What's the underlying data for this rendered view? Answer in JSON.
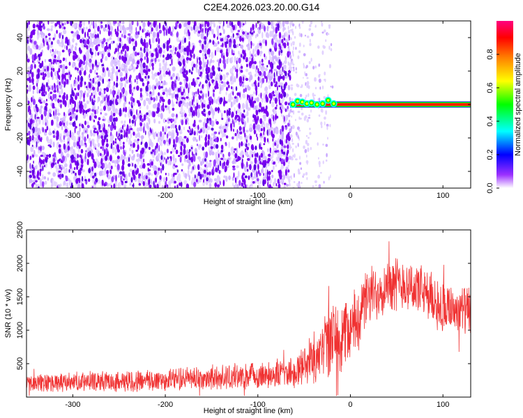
{
  "title": "C2E4.2026.023.20.00.G14",
  "chart_data": [
    {
      "type": "heatmap",
      "xlabel": "Height of straight line (km)",
      "ylabel": "Frequency (Hz)",
      "xlim": [
        -350,
        130
      ],
      "ylim": [
        -50,
        50
      ],
      "xticks": [
        -300,
        -200,
        -100,
        0,
        100
      ],
      "yticks": [
        -40,
        -20,
        0,
        20,
        40
      ],
      "colorbar": {
        "label": "Normalized spectral amplitude",
        "range": [
          0,
          1
        ],
        "ticks": [
          "0.0",
          "0.2",
          "0.4",
          "0.6",
          "0.8"
        ],
        "colors": [
          "#ffffff",
          "#8000ff",
          "#0000ff",
          "#00ffff",
          "#00ff00",
          "#ffff00",
          "#ff8000",
          "#ff0000",
          "#ff0080"
        ]
      },
      "features": {
        "noise_region_x": [
          -350,
          -65
        ],
        "sparse_noise_x": [
          -65,
          -20
        ],
        "signal_band": {
          "x_start": -65,
          "x_end": 130,
          "frequency": 0,
          "peak_amplitude": 1.0
        },
        "noise_color": "#7a00f0"
      }
    },
    {
      "type": "line",
      "xlabel": "Height of straight line (km)",
      "ylabel": "SNR (10 * v/v)",
      "xlim": [
        -350,
        130
      ],
      "ylim": [
        0,
        2500
      ],
      "xticks": [
        -300,
        -200,
        -100,
        0,
        100
      ],
      "yticks": [
        500,
        1000,
        1500,
        2000,
        2500
      ],
      "series": [
        {
          "color": "#f03232",
          "envelope": {
            "x": [
              -350,
              -300,
              -250,
              -200,
              -150,
              -100,
              -60,
              -40,
              -20,
              0,
              20,
              40,
              60,
              80,
              100,
              120,
              130
            ],
            "mean": [
              200,
              220,
              240,
              260,
              290,
              320,
              380,
              600,
              850,
              1000,
              1500,
              1700,
              1700,
              1550,
              1350,
              1300,
              1250
            ],
            "spread": [
              120,
              130,
              140,
              150,
              160,
              170,
              200,
              350,
              500,
              450,
              400,
              350,
              350,
              350,
              350,
              350,
              350
            ]
          }
        }
      ]
    }
  ]
}
